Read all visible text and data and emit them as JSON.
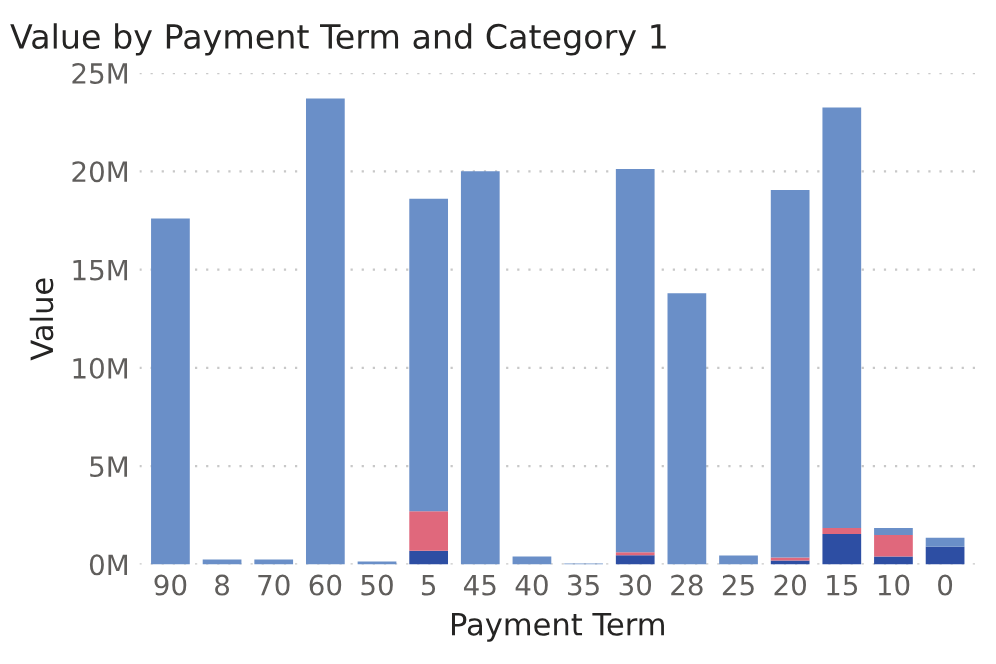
{
  "chart_data": {
    "type": "bar",
    "stacked": true,
    "title": "Value by Payment Term and Category 1",
    "xlabel": "Payment Term",
    "ylabel": "Value",
    "categories": [
      "90",
      "8",
      "70",
      "60",
      "50",
      "5",
      "45",
      "40",
      "35",
      "30",
      "28",
      "25",
      "20",
      "15",
      "10",
      "0"
    ],
    "series": [
      {
        "color": "#2d4ea3",
        "values": [
          0,
          0,
          0,
          0,
          0,
          0.7,
          0,
          0,
          0,
          0.47,
          0,
          0,
          0.2,
          1.55,
          0.4,
          0.9
        ]
      },
      {
        "color": "#e0687c",
        "values": [
          0,
          0,
          0,
          0,
          0,
          2.0,
          0,
          0,
          0,
          0.15,
          0,
          0,
          0.15,
          0.3,
          1.1,
          0
        ]
      },
      {
        "color": "#6a8fc8",
        "values": [
          17.6,
          0.25,
          0.25,
          23.7,
          0.15,
          15.9,
          20.0,
          0.4,
          0.05,
          19.5,
          13.8,
          0.45,
          18.7,
          21.4,
          0.35,
          0.45
        ]
      }
    ],
    "ylim": [
      0,
      25
    ],
    "yticks": [
      {
        "value": 0,
        "label": "0M"
      },
      {
        "value": 5,
        "label": "5M"
      },
      {
        "value": 10,
        "label": "10M"
      },
      {
        "value": 15,
        "label": "15M"
      },
      {
        "value": 20,
        "label": "20M"
      },
      {
        "value": 25,
        "label": "25M"
      }
    ],
    "grid": "y"
  }
}
